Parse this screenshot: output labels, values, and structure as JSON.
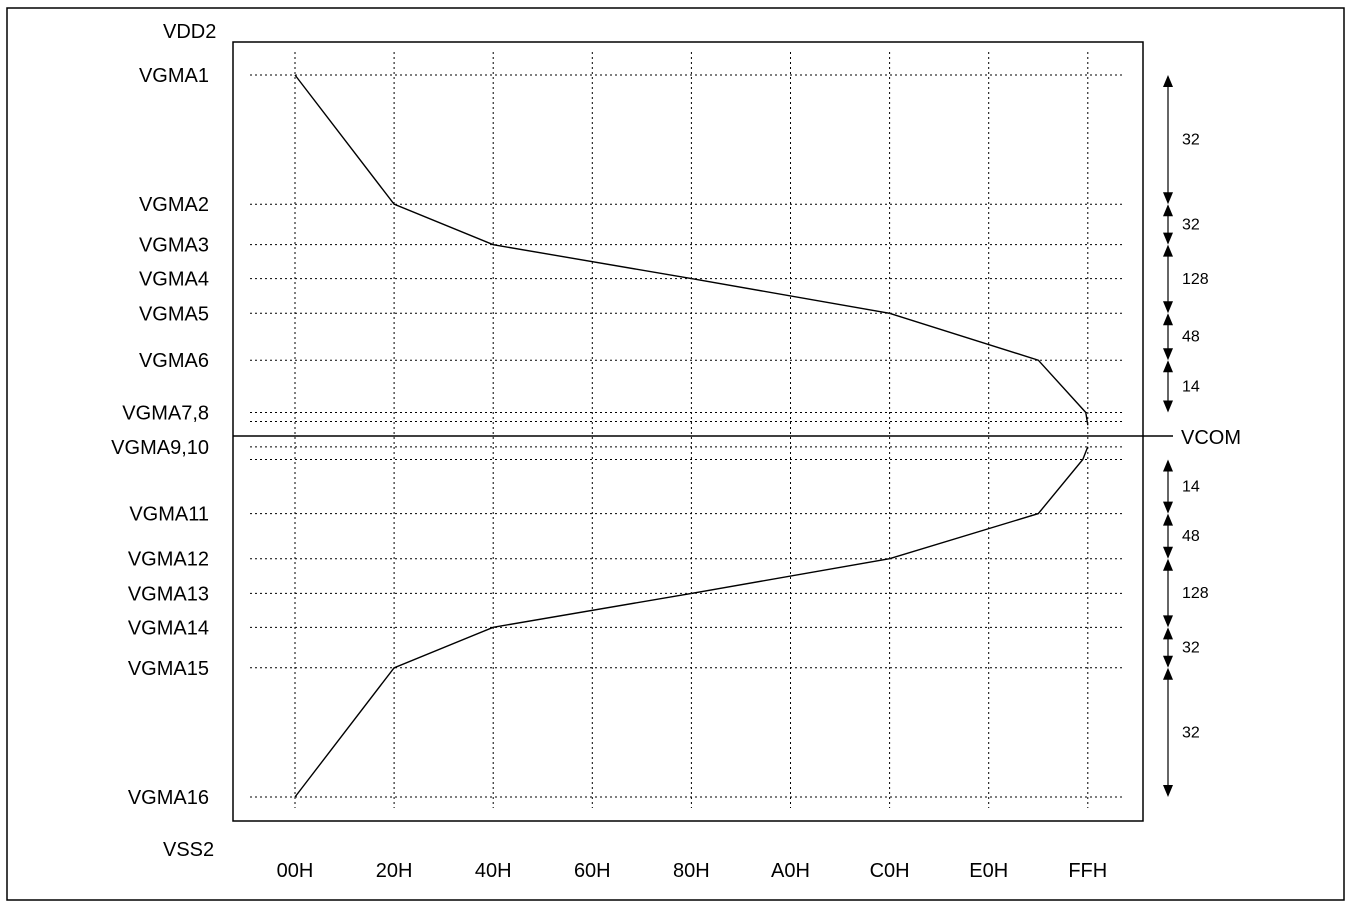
{
  "chart_data": {
    "type": "line",
    "supply_labels": {
      "top": "VDD2",
      "bottom": "VSS2"
    },
    "x_ticks": [
      "00H",
      "20H",
      "40H",
      "60H",
      "80H",
      "A0H",
      "C0H",
      "E0H",
      "FFH"
    ],
    "vcom": {
      "label": "VCOM",
      "level": 0
    },
    "levels": [
      {
        "label": "VGMA1",
        "y": 1.0,
        "tick": true
      },
      {
        "label": "VGMA2",
        "y": 0.642,
        "tick": true
      },
      {
        "label": "VGMA3",
        "y": 0.53,
        "tick": true
      },
      {
        "label": "VGMA4",
        "y": 0.436,
        "tick": true
      },
      {
        "label": "VGMA5",
        "y": 0.34,
        "tick": true
      },
      {
        "label": "VGMA6",
        "y": 0.21,
        "tick": true
      },
      {
        "label": "VGMA7,8",
        "y": 0.065,
        "tick": true
      },
      {
        "label": "",
        "y": 0.04,
        "tick": false
      },
      {
        "label": "VGMA9,10",
        "y": -0.03,
        "tick": true
      },
      {
        "label": "",
        "y": -0.065,
        "tick": false
      },
      {
        "label": "VGMA11",
        "y": -0.215,
        "tick": true
      },
      {
        "label": "VGMA12",
        "y": -0.34,
        "tick": true
      },
      {
        "label": "VGMA13",
        "y": -0.436,
        "tick": true
      },
      {
        "label": "VGMA14",
        "y": -0.53,
        "tick": true
      },
      {
        "label": "VGMA15",
        "y": -0.642,
        "tick": true
      },
      {
        "label": "VGMA16",
        "y": -1.0,
        "tick": true
      }
    ],
    "series": [
      {
        "points": [
          [
            0,
            1.0
          ],
          [
            1,
            0.642
          ],
          [
            2,
            0.53
          ],
          [
            4,
            0.436
          ],
          [
            6,
            0.34
          ],
          [
            7.5,
            0.21
          ],
          [
            7.98,
            0.065
          ],
          [
            8.0,
            0.03
          ]
        ]
      },
      {
        "points": [
          [
            8.0,
            -0.03
          ],
          [
            7.95,
            -0.065
          ],
          [
            7.5,
            -0.215
          ],
          [
            6,
            -0.34
          ],
          [
            4,
            -0.436
          ],
          [
            2,
            -0.53
          ],
          [
            1,
            -0.642
          ],
          [
            0,
            -1.0
          ]
        ]
      }
    ],
    "segments": [
      {
        "label": "32",
        "from": 1.0,
        "to": 0.642
      },
      {
        "label": "32",
        "from": 0.642,
        "to": 0.53
      },
      {
        "label": "128",
        "from": 0.53,
        "to": 0.34
      },
      {
        "label": "48",
        "from": 0.34,
        "to": 0.21
      },
      {
        "label": "14",
        "from": 0.21,
        "to": 0.065
      },
      {
        "label": "14",
        "from": -0.065,
        "to": -0.215
      },
      {
        "label": "48",
        "from": -0.215,
        "to": -0.34
      },
      {
        "label": "128",
        "from": -0.34,
        "to": -0.53
      },
      {
        "label": "32",
        "from": -0.53,
        "to": -0.642
      },
      {
        "label": "32",
        "from": -0.642,
        "to": -1.0
      }
    ],
    "grid": true
  }
}
